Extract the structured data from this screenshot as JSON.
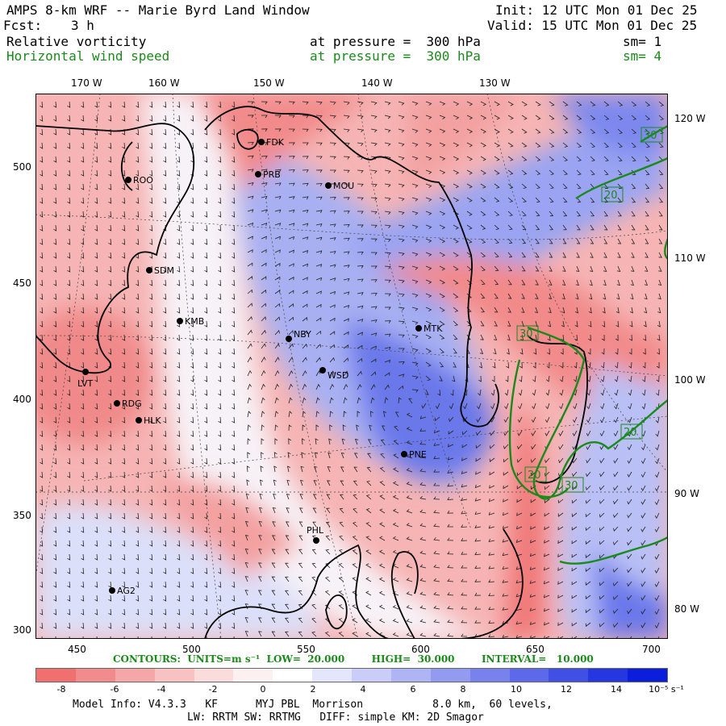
{
  "header": {
    "title": "AMPS 8-km WRF -- Marie Byrd Land Window",
    "init": "Init: 12 UTC Mon 01 Dec 25",
    "fcst_label": "Fcst:",
    "fcst_value": "3 h",
    "valid": "Valid: 15 UTC Mon 01 Dec 25",
    "field1_name": "Relative vorticity",
    "field1_level": "at pressure =  300 hPa",
    "field1_sm": "sm= 1",
    "field2_name": "Horizontal wind speed",
    "field2_level": "at pressure =  300 hPa",
    "field2_sm": "sm= 4",
    "green_color": "#1a8a1a"
  },
  "axes": {
    "top_lon_labels": [
      "170 W",
      "160 W",
      "150 W",
      "140 W",
      "130 W"
    ],
    "right_lon_labels": [
      "120 W",
      "110 W",
      "100 W",
      "90 W",
      "80 W"
    ],
    "left_y_labels": [
      "500",
      "450",
      "400",
      "350",
      "300"
    ],
    "bottom_x_labels": [
      "450",
      "500",
      "550",
      "600",
      "650",
      "700"
    ]
  },
  "stations": [
    {
      "id": "ROO"
    },
    {
      "id": "FDK"
    },
    {
      "id": "PRB"
    },
    {
      "id": "MOU"
    },
    {
      "id": "SDM"
    },
    {
      "id": "KMB"
    },
    {
      "id": "NBY"
    },
    {
      "id": "MTK"
    },
    {
      "id": "WSD"
    },
    {
      "id": "LVT"
    },
    {
      "id": "RDG"
    },
    {
      "id": "HLK"
    },
    {
      "id": "PNE"
    },
    {
      "id": "PHL"
    },
    {
      "id": "AG2"
    }
  ],
  "contour_labels": [
    "30",
    "20",
    "30",
    "20",
    "20",
    "30",
    "20"
  ],
  "contours_line": "CONTOURS:  UNITS=m s⁻¹  LOW=  20.000        HIGH=  30.000        INTERVAL=   10.000",
  "colorbar": {
    "labels": [
      "-8",
      "-6",
      "-4",
      "-2",
      "0",
      "2",
      "4",
      "6",
      "8",
      "10",
      "12",
      "14",
      "10⁻⁵ s⁻¹"
    ],
    "colors": [
      "#f07070",
      "#f28c8c",
      "#f5a7a7",
      "#f8c2c2",
      "#fbdcdc",
      "#fdf0f0",
      "#ffffff",
      "#e4e6fc",
      "#c9cdf8",
      "#aeb4f4",
      "#929bf0",
      "#7782ec",
      "#5c69e8",
      "#4050e4",
      "#2537e0",
      "#0a1edc"
    ]
  },
  "footer": {
    "line1": "Model Info: V4.3.3   KF      MYJ PBL  Morrison           8.0 km,  60 levels,",
    "line2": "LW: RRTM SW: RRTMG   DIFF: simple KM: 2D Smagor"
  }
}
